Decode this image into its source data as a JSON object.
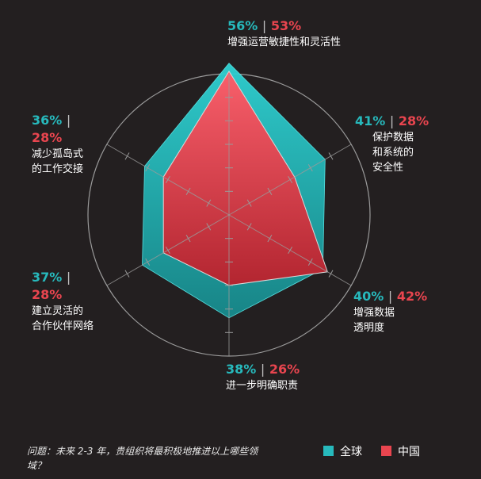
{
  "chart_data": {
    "type": "radar",
    "categories": [
      "增强运营敏捷性和灵活性",
      "保护数据和系统的安全性",
      "增强数据透明度",
      "进一步明确职责",
      "建立灵活的合作伙伴网络",
      "减少孤岛式的工作交接"
    ],
    "series": [
      {
        "name": "全球",
        "values": [
          56,
          41,
          40,
          38,
          37,
          36
        ],
        "color": "#27b9bc"
      },
      {
        "name": "中国",
        "values": [
          53,
          28,
          42,
          26,
          28,
          28
        ],
        "color": "#e9454f"
      }
    ],
    "rmax": 60,
    "ticks": 5,
    "question": "问题：未来 2-3 年，贵组织将最积极地推进以上哪些领域？"
  },
  "labels": [
    {
      "global": "56%",
      "china": "53%",
      "sep": "|",
      "line1": "增强运营敏捷性和灵活性",
      "line2": "",
      "line3": ""
    },
    {
      "global": "41%",
      "china": "28%",
      "sep": "|",
      "line1": "保护数据",
      "line2": "和系统的",
      "line3": "安全性"
    },
    {
      "global": "40%",
      "china": "42%",
      "sep": "|",
      "line1": "增强数据",
      "line2": "透明度",
      "line3": ""
    },
    {
      "global": "38%",
      "china": "26%",
      "sep": "|",
      "line1": "进一步明确职责",
      "line2": "",
      "line3": ""
    },
    {
      "global": "37%",
      "china": "28%",
      "sep": "|",
      "line1": "建立灵活的",
      "line2": "合作伙伴网络",
      "line3": ""
    },
    {
      "global": "36%",
      "china": "28%",
      "sep": "|",
      "line1": "减少孤岛式",
      "line2": "的工作交接",
      "line3": ""
    }
  ],
  "legend": {
    "global": "全球",
    "china": "中国"
  },
  "colors": {
    "background": "#231f20",
    "global": "#27b9bc",
    "china": "#e9454f",
    "grid": "#9a9a9a"
  }
}
